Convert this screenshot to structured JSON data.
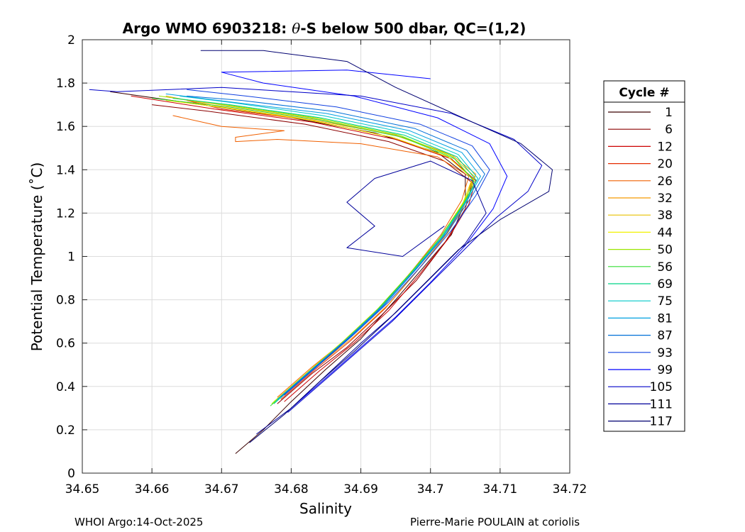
{
  "chart_data": {
    "type": "line",
    "title_prefix": "Argo WMO 6903218: ",
    "title_theta": "θ",
    "title_suffix": "-S below 500 dbar,  QC=(1,2)",
    "xlabel": "Salinity",
    "ylabel": "Potential Temperature (˚C)",
    "xlim": [
      34.65,
      34.72
    ],
    "ylim": [
      0,
      2
    ],
    "xticks": [
      34.65,
      34.66,
      34.67,
      34.68,
      34.69,
      34.7,
      34.71,
      34.72
    ],
    "xtick_labels": [
      "34.65",
      "34.66",
      "34.67",
      "34.68",
      "34.69",
      "34.7",
      "34.71",
      "34.72"
    ],
    "yticks": [
      0,
      0.2,
      0.4,
      0.6,
      0.8,
      1,
      1.2,
      1.4,
      1.6,
      1.8,
      2
    ],
    "ytick_labels": [
      "0",
      "0.2",
      "0.4",
      "0.6",
      "0.8",
      "1",
      "1.2",
      "1.4",
      "1.6",
      "1.8",
      "2"
    ],
    "grid": true,
    "legend_title": "Cycle #",
    "legend_position": "right",
    "series": [
      {
        "name": "1",
        "color": "#3a0000",
        "points": [
          [
            34.672,
            0.09
          ],
          [
            34.676,
            0.2
          ],
          [
            34.68,
            0.33
          ],
          [
            34.685,
            0.48
          ],
          [
            34.69,
            0.62
          ],
          [
            34.695,
            0.8
          ],
          [
            34.699,
            0.95
          ],
          [
            34.703,
            1.1
          ],
          [
            34.705,
            1.25
          ],
          [
            34.705,
            1.38
          ],
          [
            34.701,
            1.48
          ],
          [
            34.692,
            1.57
          ],
          [
            34.68,
            1.64
          ],
          [
            34.665,
            1.71
          ],
          [
            34.654,
            1.76
          ]
        ]
      },
      {
        "name": "6",
        "color": "#8b0000",
        "points": [
          [
            34.678,
            0.32
          ],
          [
            34.683,
            0.46
          ],
          [
            34.688,
            0.58
          ],
          [
            34.693,
            0.73
          ],
          [
            34.698,
            0.89
          ],
          [
            34.702,
            1.06
          ],
          [
            34.705,
            1.22
          ],
          [
            34.706,
            1.34
          ],
          [
            34.702,
            1.44
          ],
          [
            34.694,
            1.53
          ],
          [
            34.682,
            1.61
          ],
          [
            34.668,
            1.67
          ],
          [
            34.66,
            1.7
          ]
        ]
      },
      {
        "name": "12",
        "color": "#cc0000",
        "points": [
          [
            34.679,
            0.33
          ],
          [
            34.684,
            0.47
          ],
          [
            34.689,
            0.6
          ],
          [
            34.694,
            0.75
          ],
          [
            34.6985,
            0.92
          ],
          [
            34.7025,
            1.08
          ],
          [
            34.7055,
            1.24
          ],
          [
            34.7065,
            1.35
          ],
          [
            34.703,
            1.45
          ],
          [
            34.695,
            1.54
          ],
          [
            34.683,
            1.62
          ],
          [
            34.669,
            1.68
          ],
          [
            34.657,
            1.74
          ]
        ]
      },
      {
        "name": "20",
        "color": "#e52b00",
        "points": [
          [
            34.6785,
            0.34
          ],
          [
            34.6835,
            0.48
          ],
          [
            34.6885,
            0.61
          ],
          [
            34.6935,
            0.76
          ],
          [
            34.698,
            0.93
          ],
          [
            34.702,
            1.09
          ],
          [
            34.705,
            1.25
          ],
          [
            34.706,
            1.36
          ],
          [
            34.7025,
            1.46
          ],
          [
            34.6945,
            1.55
          ],
          [
            34.6825,
            1.63
          ],
          [
            34.67,
            1.68
          ],
          [
            34.665,
            1.72
          ]
        ]
      },
      {
        "name": "26",
        "color": "#f06000",
        "points": [
          [
            34.678,
            0.35
          ],
          [
            34.683,
            0.49
          ],
          [
            34.688,
            0.62
          ],
          [
            34.693,
            0.77
          ],
          [
            34.6975,
            0.94
          ],
          [
            34.7015,
            1.1
          ],
          [
            34.7045,
            1.26
          ],
          [
            34.7055,
            1.37
          ],
          [
            34.701,
            1.46
          ],
          [
            34.69,
            1.52
          ],
          [
            34.678,
            1.54
          ],
          [
            34.672,
            1.53
          ],
          [
            34.672,
            1.55
          ],
          [
            34.679,
            1.58
          ],
          [
            34.67,
            1.6
          ],
          [
            34.663,
            1.65
          ]
        ]
      },
      {
        "name": "32",
        "color": "#f59a00",
        "points": [
          [
            34.679,
            0.36
          ],
          [
            34.684,
            0.5
          ],
          [
            34.689,
            0.63
          ],
          [
            34.694,
            0.78
          ],
          [
            34.6985,
            0.95
          ],
          [
            34.7025,
            1.11
          ],
          [
            34.7055,
            1.27
          ],
          [
            34.7065,
            1.38
          ],
          [
            34.703,
            1.47
          ],
          [
            34.695,
            1.56
          ],
          [
            34.683,
            1.63
          ],
          [
            34.67,
            1.69
          ],
          [
            34.662,
            1.74
          ]
        ]
      },
      {
        "name": "38",
        "color": "#e8c000",
        "points": [
          [
            34.678,
            0.34
          ],
          [
            34.683,
            0.48
          ],
          [
            34.688,
            0.62
          ],
          [
            34.693,
            0.77
          ],
          [
            34.6978,
            0.94
          ],
          [
            34.702,
            1.1
          ],
          [
            34.705,
            1.26
          ],
          [
            34.7063,
            1.37
          ],
          [
            34.7028,
            1.47
          ],
          [
            34.6948,
            1.56
          ],
          [
            34.6828,
            1.64
          ],
          [
            34.6698,
            1.7
          ],
          [
            34.663,
            1.73
          ]
        ]
      },
      {
        "name": "44",
        "color": "#f2f200",
        "points": [
          [
            34.6775,
            0.33
          ],
          [
            34.6825,
            0.47
          ],
          [
            34.6875,
            0.61
          ],
          [
            34.6925,
            0.76
          ],
          [
            34.6973,
            0.93
          ],
          [
            34.7015,
            1.09
          ],
          [
            34.7047,
            1.25
          ],
          [
            34.706,
            1.36
          ],
          [
            34.7025,
            1.46
          ],
          [
            34.6945,
            1.55
          ],
          [
            34.6825,
            1.63
          ],
          [
            34.6695,
            1.69
          ],
          [
            34.662,
            1.72
          ]
        ]
      },
      {
        "name": "50",
        "color": "#9ae600",
        "points": [
          [
            34.6772,
            0.32
          ],
          [
            34.6822,
            0.46
          ],
          [
            34.6872,
            0.6
          ],
          [
            34.6922,
            0.75
          ],
          [
            34.697,
            0.92
          ],
          [
            34.7012,
            1.08
          ],
          [
            34.7046,
            1.24
          ],
          [
            34.7062,
            1.35
          ],
          [
            34.7032,
            1.46
          ],
          [
            34.6955,
            1.56
          ],
          [
            34.6835,
            1.64
          ],
          [
            34.6705,
            1.7
          ],
          [
            34.661,
            1.74
          ]
        ]
      },
      {
        "name": "56",
        "color": "#33dd33",
        "points": [
          [
            34.677,
            0.31
          ],
          [
            34.682,
            0.45
          ],
          [
            34.687,
            0.59
          ],
          [
            34.692,
            0.74
          ],
          [
            34.6968,
            0.91
          ],
          [
            34.701,
            1.07
          ],
          [
            34.7045,
            1.23
          ],
          [
            34.7064,
            1.34
          ],
          [
            34.7035,
            1.45
          ],
          [
            34.696,
            1.55
          ],
          [
            34.684,
            1.63
          ],
          [
            34.671,
            1.69
          ],
          [
            34.66,
            1.73
          ]
        ]
      },
      {
        "name": "69",
        "color": "#00d488",
        "points": [
          [
            34.6775,
            0.32
          ],
          [
            34.6825,
            0.46
          ],
          [
            34.6875,
            0.6
          ],
          [
            34.6925,
            0.75
          ],
          [
            34.6972,
            0.92
          ],
          [
            34.7014,
            1.08
          ],
          [
            34.7048,
            1.24
          ],
          [
            34.7066,
            1.35
          ],
          [
            34.7038,
            1.46
          ],
          [
            34.6962,
            1.56
          ],
          [
            34.6842,
            1.64
          ],
          [
            34.6712,
            1.7
          ],
          [
            34.663,
            1.73
          ]
        ]
      },
      {
        "name": "75",
        "color": "#00c8c8",
        "points": [
          [
            34.6778,
            0.33
          ],
          [
            34.6828,
            0.47
          ],
          [
            34.6878,
            0.61
          ],
          [
            34.6928,
            0.76
          ],
          [
            34.6975,
            0.93
          ],
          [
            34.7017,
            1.09
          ],
          [
            34.705,
            1.25
          ],
          [
            34.7068,
            1.36
          ],
          [
            34.704,
            1.47
          ],
          [
            34.6965,
            1.57
          ],
          [
            34.6845,
            1.65
          ],
          [
            34.6715,
            1.71
          ],
          [
            34.664,
            1.74
          ]
        ]
      },
      {
        "name": "81",
        "color": "#00a0e0",
        "points": [
          [
            34.678,
            0.34
          ],
          [
            34.683,
            0.48
          ],
          [
            34.688,
            0.62
          ],
          [
            34.693,
            0.77
          ],
          [
            34.6978,
            0.94
          ],
          [
            34.702,
            1.1
          ],
          [
            34.7053,
            1.26
          ],
          [
            34.7072,
            1.37
          ],
          [
            34.7045,
            1.48
          ],
          [
            34.697,
            1.58
          ],
          [
            34.685,
            1.66
          ],
          [
            34.672,
            1.71
          ],
          [
            34.662,
            1.75
          ]
        ]
      },
      {
        "name": "87",
        "color": "#0070d8",
        "points": [
          [
            34.6785,
            0.35
          ],
          [
            34.6835,
            0.49
          ],
          [
            34.6885,
            0.63
          ],
          [
            34.6935,
            0.78
          ],
          [
            34.6982,
            0.95
          ],
          [
            34.7024,
            1.11
          ],
          [
            34.7058,
            1.27
          ],
          [
            34.7078,
            1.38
          ],
          [
            34.7052,
            1.49
          ],
          [
            34.6978,
            1.59
          ],
          [
            34.6858,
            1.67
          ],
          [
            34.6728,
            1.72
          ],
          [
            34.665,
            1.74
          ]
        ]
      },
      {
        "name": "93",
        "color": "#1040e0",
        "points": [
          [
            34.679,
            0.36
          ],
          [
            34.684,
            0.5
          ],
          [
            34.689,
            0.64
          ],
          [
            34.694,
            0.79
          ],
          [
            34.6988,
            0.96
          ],
          [
            34.703,
            1.12
          ],
          [
            34.7065,
            1.28
          ],
          [
            34.7085,
            1.4
          ],
          [
            34.706,
            1.51
          ],
          [
            34.6985,
            1.61
          ],
          [
            34.6865,
            1.69
          ],
          [
            34.6735,
            1.74
          ],
          [
            34.665,
            1.77
          ]
        ]
      },
      {
        "name": "99",
        "color": "#0000ff",
        "points": [
          [
            34.68,
            0.3
          ],
          [
            34.685,
            0.44
          ],
          [
            34.69,
            0.58
          ],
          [
            34.695,
            0.72
          ],
          [
            34.7,
            0.88
          ],
          [
            34.705,
            1.05
          ],
          [
            34.709,
            1.22
          ],
          [
            34.711,
            1.37
          ],
          [
            34.7085,
            1.52
          ],
          [
            34.701,
            1.64
          ],
          [
            34.689,
            1.74
          ],
          [
            34.676,
            1.8
          ],
          [
            34.67,
            1.85
          ],
          [
            34.688,
            1.86
          ],
          [
            34.7,
            1.82
          ]
        ]
      },
      {
        "name": "105",
        "color": "#0000c8",
        "points": [
          [
            34.6795,
            0.28
          ],
          [
            34.6845,
            0.42
          ],
          [
            34.6895,
            0.56
          ],
          [
            34.6945,
            0.7
          ],
          [
            34.6995,
            0.86
          ],
          [
            34.7045,
            1.02
          ],
          [
            34.7095,
            1.18
          ],
          [
            34.714,
            1.3
          ],
          [
            34.716,
            1.42
          ],
          [
            34.712,
            1.54
          ],
          [
            34.703,
            1.66
          ],
          [
            34.69,
            1.74
          ],
          [
            34.67,
            1.78
          ],
          [
            34.655,
            1.76
          ],
          [
            34.651,
            1.77
          ]
        ]
      },
      {
        "name": "111",
        "color": "#00009a",
        "points": [
          [
            34.675,
            0.18
          ],
          [
            34.68,
            0.3
          ],
          [
            34.685,
            0.45
          ],
          [
            34.69,
            0.6
          ],
          [
            34.695,
            0.74
          ],
          [
            34.7,
            0.9
          ],
          [
            34.705,
            1.06
          ],
          [
            34.708,
            1.2
          ],
          [
            34.706,
            1.35
          ],
          [
            34.7,
            1.44
          ],
          [
            34.692,
            1.36
          ],
          [
            34.688,
            1.25
          ],
          [
            34.692,
            1.14
          ],
          [
            34.688,
            1.04
          ],
          [
            34.696,
            1.0
          ],
          [
            34.702,
            1.14
          ]
        ]
      },
      {
        "name": "117",
        "color": "#000070",
        "points": [
          [
            34.674,
            0.14
          ],
          [
            34.679,
            0.27
          ],
          [
            34.684,
            0.42
          ],
          [
            34.689,
            0.56
          ],
          [
            34.694,
            0.71
          ],
          [
            34.699,
            0.87
          ],
          [
            34.704,
            1.03
          ],
          [
            34.71,
            1.17
          ],
          [
            34.717,
            1.3
          ],
          [
            34.7175,
            1.4
          ],
          [
            34.713,
            1.52
          ],
          [
            34.706,
            1.62
          ],
          [
            34.695,
            1.78
          ],
          [
            34.688,
            1.9
          ],
          [
            34.676,
            1.95
          ],
          [
            34.667,
            1.95
          ]
        ]
      }
    ]
  },
  "footer": {
    "left": "WHOI Argo:14-Oct-2025",
    "right": "Pierre-Marie POULAIN at coriolis"
  }
}
